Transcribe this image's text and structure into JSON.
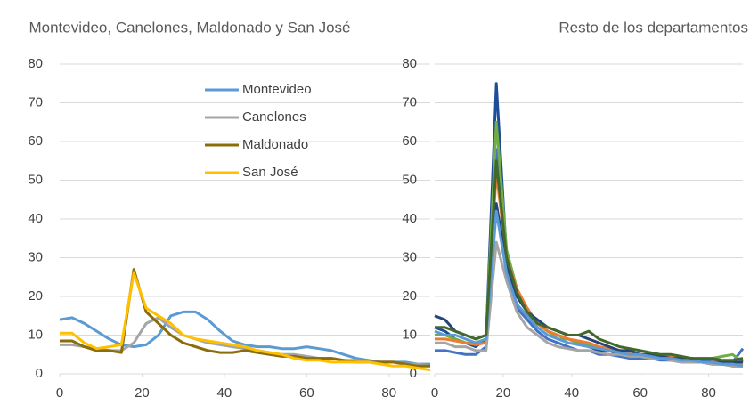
{
  "chart_data": [
    {
      "type": "line",
      "title": "Montevideo, Canelones, Maldonado y San José",
      "x": [
        0,
        3,
        6,
        9,
        12,
        15,
        18,
        21,
        24,
        27,
        30,
        33,
        36,
        39,
        42,
        45,
        48,
        51,
        54,
        57,
        60,
        63,
        66,
        69,
        72,
        75,
        78,
        81,
        84,
        87,
        90
      ],
      "xlim": [
        0,
        90
      ],
      "xticks": [
        0,
        20,
        40,
        60,
        80
      ],
      "ylim": [
        0,
        80
      ],
      "yticks": [
        0,
        10,
        20,
        30,
        40,
        50,
        60,
        70,
        80
      ],
      "grid": true,
      "legend": "upper right",
      "series": [
        {
          "name": "Montevideo",
          "color": "#5b9bd5",
          "values": [
            14,
            14.5,
            13,
            11,
            9,
            7.5,
            7,
            7.5,
            10,
            15,
            16,
            16,
            14,
            11,
            8.5,
            7.5,
            7,
            7,
            6.5,
            6.5,
            7,
            6.5,
            6,
            5,
            4,
            3.5,
            3,
            3,
            3,
            2.5,
            2.5
          ]
        },
        {
          "name": "Canelones",
          "color": "#a5a5a5",
          "values": [
            7.5,
            7.5,
            7,
            6.5,
            6,
            6,
            8,
            13,
            14.5,
            12,
            10,
            9,
            8,
            7.5,
            7,
            6.5,
            6,
            5.5,
            5,
            5,
            4.5,
            4,
            4,
            3.5,
            3.5,
            3,
            3,
            3,
            2.5,
            2.5,
            2
          ]
        },
        {
          "name": "Maldonado",
          "color": "#8b6d0b",
          "values": [
            8.5,
            8.5,
            7,
            6,
            6,
            5.5,
            27,
            16,
            13,
            10,
            8,
            7,
            6,
            5.5,
            5.5,
            6,
            5.5,
            5,
            4.5,
            4.5,
            4,
            4,
            4,
            3.5,
            3,
            3,
            3,
            3,
            2.5,
            2,
            2
          ]
        },
        {
          "name": "San José",
          "color": "#ffc000",
          "values": [
            10.5,
            10.5,
            8,
            6.5,
            7,
            7.5,
            26,
            17,
            15,
            13,
            10,
            9,
            8.5,
            8,
            7.5,
            7,
            6,
            5.5,
            5,
            4,
            3.5,
            3.5,
            3,
            3,
            3,
            3,
            2.5,
            2,
            2,
            1.5,
            1
          ]
        }
      ]
    },
    {
      "type": "line",
      "title": "Resto de los departamentos",
      "x": [
        0,
        3,
        6,
        9,
        12,
        15,
        18,
        21,
        24,
        27,
        30,
        33,
        36,
        39,
        42,
        45,
        48,
        51,
        54,
        57,
        60,
        63,
        66,
        69,
        72,
        75,
        78,
        81,
        84,
        87,
        90
      ],
      "xlim": [
        0,
        90
      ],
      "xticks": [
        0,
        20,
        40,
        60,
        80
      ],
      "ylim": [
        0,
        80
      ],
      "yticks": [
        0,
        10,
        20,
        30,
        40,
        50,
        60,
        70,
        80
      ],
      "grid": true,
      "series": [
        {
          "color": "#1f4e99",
          "values": [
            12,
            11,
            9,
            8,
            7,
            9,
            75,
            30,
            20,
            17,
            13,
            11,
            10,
            9,
            8,
            7,
            6,
            6,
            5,
            5,
            4.5,
            4,
            4,
            3.5,
            3.5,
            3,
            3,
            2.5,
            2.5,
            2,
            2
          ]
        },
        {
          "color": "#4472c4",
          "values": [
            6,
            6,
            5.5,
            5,
            5,
            7,
            58,
            25,
            17,
            14,
            11,
            9,
            8,
            7,
            6,
            6,
            5,
            5,
            4.5,
            4,
            4,
            4,
            3.5,
            3.5,
            3,
            3,
            3,
            2.5,
            2.5,
            3,
            6.5
          ]
        },
        {
          "color": "#70ad47",
          "values": [
            10,
            10,
            9,
            8,
            8,
            9,
            65,
            32,
            22,
            16,
            13,
            11,
            9,
            9,
            8,
            7.5,
            7,
            6.5,
            6,
            5.5,
            5,
            5,
            4.5,
            4,
            4,
            4,
            3.5,
            4,
            4.5,
            5,
            3
          ]
        },
        {
          "color": "#ed7d31",
          "values": [
            9,
            9,
            8.5,
            8,
            7.5,
            8,
            52,
            30,
            22,
            17,
            13,
            11,
            10,
            9,
            8.5,
            8,
            7,
            6.5,
            6,
            5.5,
            5,
            5,
            4.5,
            4.5,
            4,
            4,
            3.5,
            3.5,
            3,
            3,
            2.5
          ]
        },
        {
          "color": "#a5a5a5",
          "values": [
            8,
            8,
            7,
            7,
            6,
            6,
            34,
            24,
            16,
            12,
            10,
            8,
            7,
            6.5,
            6,
            6,
            5.5,
            5,
            5,
            4.5,
            4.5,
            4,
            4,
            3.5,
            3,
            3,
            3,
            2.5,
            2.5,
            2,
            2
          ]
        },
        {
          "color": "#264478",
          "values": [
            15,
            14,
            11,
            10,
            9,
            10,
            44,
            28,
            20,
            16,
            14,
            12,
            11,
            10,
            10,
            9,
            8,
            7,
            6,
            6,
            5,
            5,
            4.5,
            4,
            4,
            4,
            3.5,
            3,
            3,
            3,
            3
          ]
        },
        {
          "color": "#5b9bd5",
          "values": [
            11,
            10,
            10,
            9,
            8,
            9,
            42,
            26,
            18,
            15,
            12,
            10,
            9,
            8,
            7.5,
            7,
            6.5,
            6,
            5.5,
            5,
            5,
            4.5,
            4,
            4,
            3.5,
            3.5,
            3,
            3,
            2.5,
            2.5,
            2
          ]
        },
        {
          "color": "#43682b",
          "values": [
            12,
            12,
            11,
            10,
            9,
            10,
            55,
            30,
            21,
            16,
            13,
            12,
            11,
            10,
            10,
            11,
            9,
            8,
            7,
            6.5,
            6,
            5.5,
            5,
            5,
            4.5,
            4,
            4,
            4,
            3.5,
            3.5,
            4
          ]
        }
      ]
    }
  ]
}
